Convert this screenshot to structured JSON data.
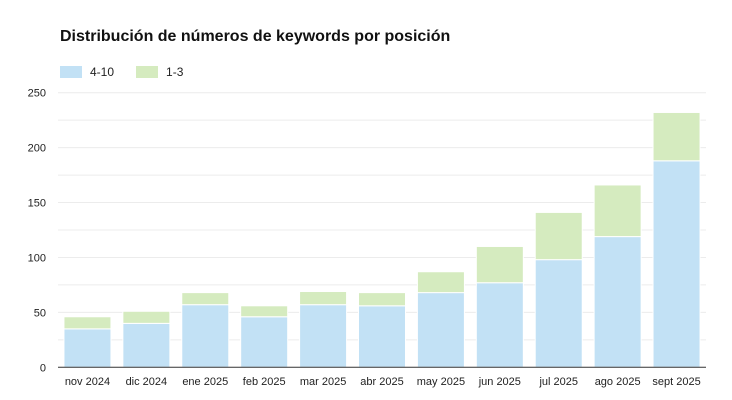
{
  "chart_data": {
    "type": "bar",
    "stacked": true,
    "title": "Distribución de números de keywords por posición",
    "categories": [
      "nov 2024",
      "dic 2024",
      "ene 2025",
      "feb 2025",
      "mar 2025",
      "abr 2025",
      "may 2025",
      "jun 2025",
      "jul 2025",
      "ago 2025",
      "sept 2025"
    ],
    "series": [
      {
        "name": "4-10",
        "color": "#c2e1f5",
        "values": [
          35,
          40,
          57,
          46,
          57,
          56,
          68,
          77,
          98,
          119,
          188
        ]
      },
      {
        "name": "1-3",
        "color": "#d5ebbf",
        "values": [
          11,
          11,
          11,
          10,
          12,
          12,
          19,
          33,
          43,
          47,
          44
        ]
      }
    ],
    "ylim": [
      0,
      250
    ],
    "yticks": [
      0,
      50,
      100,
      150,
      200,
      250
    ],
    "grid": true,
    "legend": "top-left",
    "xlabel": "",
    "ylabel": ""
  }
}
